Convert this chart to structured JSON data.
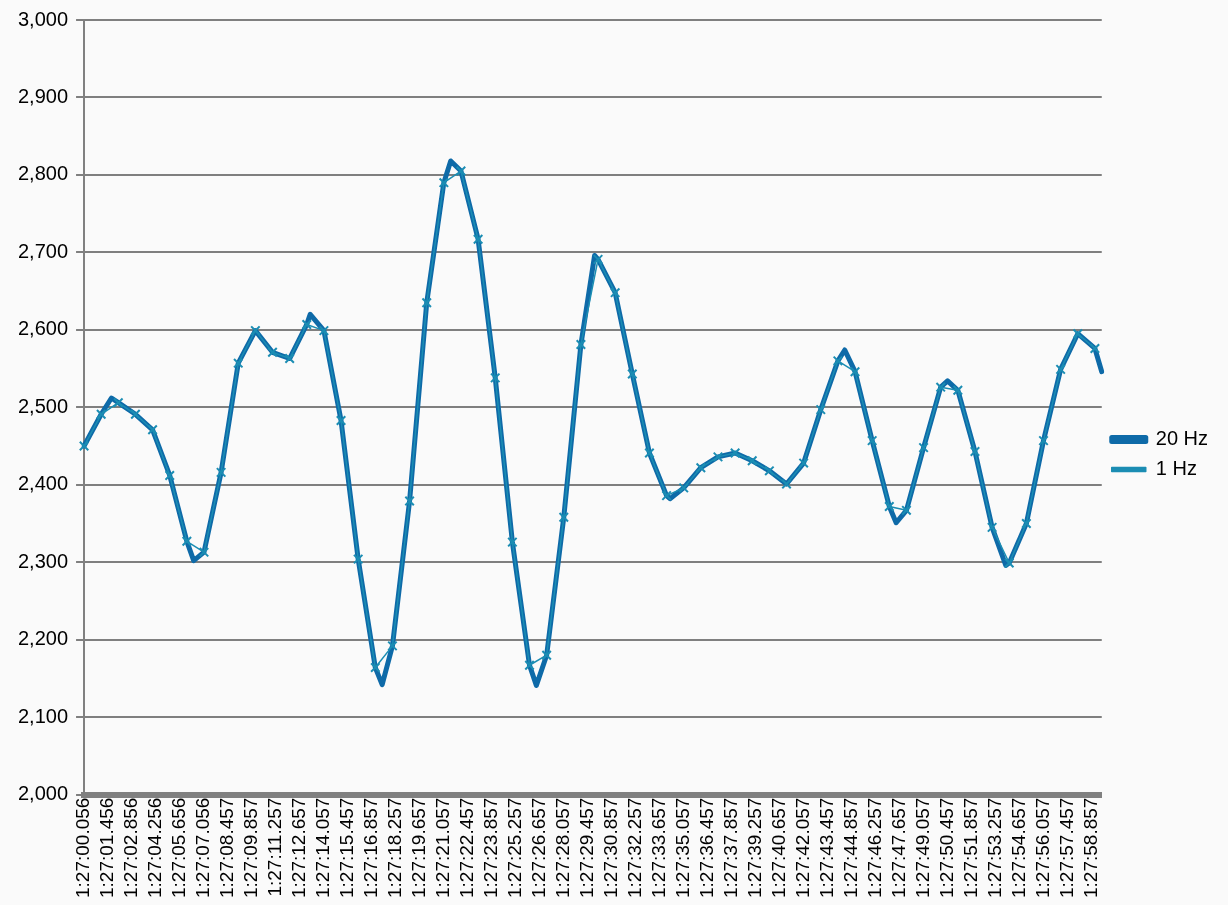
{
  "chart_data": {
    "type": "line",
    "ylim": [
      2000,
      3000
    ],
    "yticks": [
      {
        "value": 2000,
        "label": "2,000"
      },
      {
        "value": 2100,
        "label": "2,100"
      },
      {
        "value": 2200,
        "label": "2,200"
      },
      {
        "value": 2300,
        "label": "2,300"
      },
      {
        "value": 2400,
        "label": "2,400"
      },
      {
        "value": 2500,
        "label": "2,500"
      },
      {
        "value": 2600,
        "label": "2,600"
      },
      {
        "value": 2700,
        "label": "2,700"
      },
      {
        "value": 2800,
        "label": "2,800"
      },
      {
        "value": 2900,
        "label": "2,900"
      },
      {
        "value": 3000,
        "label": "3,000"
      }
    ],
    "categories": [
      "1:27:00.056",
      null,
      null,
      null,
      null,
      null,
      null,
      "1:27:01.456",
      null,
      null,
      null,
      null,
      null,
      null,
      "1:27:02.856",
      null,
      null,
      null,
      null,
      null,
      null,
      "1:27:04.256",
      null,
      null,
      null,
      null,
      null,
      null,
      "1:27:05.656",
      null,
      null,
      null,
      null,
      null,
      null,
      "1:27:07.056",
      null,
      null,
      null,
      null,
      null,
      null,
      "1:27:08.457",
      null,
      null,
      null,
      null,
      null,
      null,
      "1:27:09.857",
      null,
      null,
      null,
      null,
      null,
      null,
      "1:27:11.257",
      null,
      null,
      null,
      null,
      null,
      null,
      "1:27:12.657",
      null,
      null,
      null,
      null,
      null,
      null,
      "1:27:14.057",
      null,
      null,
      null,
      null,
      null,
      null,
      "1:27:15.457",
      null,
      null,
      null,
      null,
      null,
      null,
      "1:27:16.857",
      null,
      null,
      null,
      null,
      null,
      null,
      "1:27:18.257",
      null,
      null,
      null,
      null,
      null,
      null,
      "1:27:19.657",
      null,
      null,
      null,
      null,
      null,
      null,
      "1:27:21.057",
      null,
      null,
      null,
      null,
      null,
      null,
      "1:27:22.457",
      null,
      null,
      null,
      null,
      null,
      null,
      "1:27:23.857",
      null,
      null,
      null,
      null,
      null,
      null,
      "1:27:25.257",
      null,
      null,
      null,
      null,
      null,
      null,
      "1:27:26.657",
      null,
      null,
      null,
      null,
      null,
      null,
      "1:27:28.057",
      null,
      null,
      null,
      null,
      null,
      null,
      "1:27:29.457",
      null,
      null,
      null,
      null,
      null,
      null,
      "1:27:30.857",
      null,
      null,
      null,
      null,
      null,
      null,
      "1:27:32.257",
      null,
      null,
      null,
      null,
      null,
      null,
      "1:27:33.657",
      null,
      null,
      null,
      null,
      null,
      null,
      "1:27:35.057",
      null,
      null,
      null,
      null,
      null,
      null,
      "1:27:36.457",
      null,
      null,
      null,
      null,
      null,
      null,
      "1:27:37.857",
      null,
      null,
      null,
      null,
      null,
      null,
      "1:27:39.257",
      null,
      null,
      null,
      null,
      null,
      null,
      "1:27:40.657",
      null,
      null,
      null,
      null,
      null,
      null,
      "1:27:42.057",
      null,
      null,
      null,
      null,
      null,
      null,
      "1:27:43.457",
      null,
      null,
      null,
      null,
      null,
      null,
      "1:27:44.857",
      null,
      null,
      null,
      null,
      null,
      null,
      "1:27:46.257",
      null,
      null,
      null,
      null,
      null,
      null,
      "1:27:47.657",
      null,
      null,
      null,
      null,
      null,
      null,
      "1:27:49.057",
      null,
      null,
      null,
      null,
      null,
      null,
      "1:27:50.457",
      null,
      null,
      null,
      null,
      null,
      null,
      "1:27:51.857",
      null,
      null,
      null,
      null,
      null,
      null,
      "1:27:53.257",
      null,
      null,
      null,
      null,
      null,
      null,
      "1:27:54.657",
      null,
      null,
      null,
      null,
      null,
      null,
      "1:27:56.057",
      null,
      null,
      null,
      null,
      null,
      null,
      "1:27:57.457",
      null,
      null,
      null,
      null,
      null,
      null,
      "1:27:58.857",
      null,
      null,
      null
    ],
    "grid": "y",
    "legend": "right",
    "series": [
      {
        "name": "20 Hz",
        "color": "#0e6aa8",
        "marker": "none",
        "values": [
          2450,
          null,
          null,
          null,
          null,
          2491,
          null,
          null,
          2512,
          null,
          2506,
          null,
          null,
          null,
          null,
          2491,
          null,
          null,
          null,
          null,
          2471,
          null,
          null,
          null,
          null,
          2412,
          null,
          null,
          null,
          null,
          2327,
          null,
          2302,
          null,
          null,
          2313,
          null,
          null,
          null,
          null,
          2416,
          null,
          null,
          null,
          null,
          2557,
          null,
          null,
          null,
          null,
          2599,
          null,
          null,
          null,
          null,
          2571,
          null,
          null,
          null,
          null,
          2563,
          null,
          null,
          null,
          null,
          2607,
          2620,
          null,
          null,
          null,
          2599,
          null,
          null,
          null,
          null,
          2483,
          null,
          null,
          null,
          null,
          2304,
          null,
          null,
          null,
          null,
          2164,
          null,
          2142,
          null,
          null,
          2192,
          null,
          null,
          null,
          null,
          2379,
          null,
          null,
          null,
          null,
          2635,
          null,
          null,
          null,
          null,
          2790,
          null,
          2818,
          null,
          null,
          2805,
          null,
          null,
          null,
          null,
          2717,
          null,
          null,
          null,
          null,
          2538,
          null,
          null,
          null,
          null,
          2326,
          null,
          null,
          null,
          null,
          2167,
          null,
          2141,
          null,
          null,
          2180,
          null,
          null,
          null,
          null,
          2358,
          null,
          null,
          null,
          null,
          2581,
          null,
          null,
          null,
          2696,
          2691,
          null,
          null,
          null,
          null,
          2648,
          null,
          null,
          null,
          null,
          2543,
          null,
          null,
          null,
          null,
          2441,
          null,
          null,
          null,
          null,
          2386,
          2382,
          null,
          null,
          null,
          2396,
          null,
          null,
          null,
          null,
          2422,
          null,
          null,
          null,
          null,
          2436,
          null,
          null,
          null,
          null,
          2441,
          null,
          null,
          null,
          null,
          2431,
          null,
          null,
          null,
          null,
          2418,
          null,
          null,
          null,
          null,
          2401,
          null,
          null,
          null,
          null,
          2428,
          null,
          null,
          null,
          null,
          2497,
          null,
          null,
          null,
          null,
          2560,
          null,
          2574,
          null,
          null,
          2546,
          null,
          null,
          null,
          null,
          2457,
          null,
          null,
          null,
          null,
          2372,
          null,
          2351,
          null,
          null,
          2367,
          null,
          null,
          null,
          null,
          2448,
          null,
          null,
          null,
          null,
          2526,
          null,
          2534,
          null,
          null,
          2522,
          null,
          null,
          null,
          null,
          2443,
          null,
          null,
          null,
          null,
          2345,
          null,
          null,
          null,
          2296,
          2299,
          null,
          null,
          null,
          null,
          2350,
          null,
          null,
          null,
          null,
          2457,
          null,
          null,
          null,
          null,
          2549,
          null,
          null,
          null,
          null,
          2595,
          null,
          null,
          null,
          null,
          2576,
          null,
          2546
        ]
      },
      {
        "name": "1 Hz",
        "color": "#1b8db3",
        "marker": "cross",
        "values": [
          2450,
          null,
          null,
          null,
          null,
          2491,
          null,
          null,
          null,
          null,
          2506,
          null,
          null,
          null,
          null,
          2491,
          null,
          null,
          null,
          null,
          2471,
          null,
          null,
          null,
          null,
          2412,
          null,
          null,
          null,
          null,
          2327,
          null,
          null,
          null,
          null,
          2313,
          null,
          null,
          null,
          null,
          2416,
          null,
          null,
          null,
          null,
          2557,
          null,
          null,
          null,
          null,
          2599,
          null,
          null,
          null,
          null,
          2571,
          null,
          null,
          null,
          null,
          2563,
          null,
          null,
          null,
          null,
          2607,
          null,
          null,
          null,
          null,
          2599,
          null,
          null,
          null,
          null,
          2483,
          null,
          null,
          null,
          null,
          2304,
          null,
          null,
          null,
          null,
          2164,
          null,
          null,
          null,
          null,
          2192,
          null,
          null,
          null,
          null,
          2379,
          null,
          null,
          null,
          null,
          2635,
          null,
          null,
          null,
          null,
          2790,
          null,
          null,
          null,
          null,
          2805,
          null,
          null,
          null,
          null,
          2717,
          null,
          null,
          null,
          null,
          2538,
          null,
          null,
          null,
          null,
          2326,
          null,
          null,
          null,
          null,
          2167,
          null,
          null,
          null,
          null,
          2180,
          null,
          null,
          null,
          null,
          2358,
          null,
          null,
          null,
          null,
          2581,
          null,
          null,
          null,
          null,
          2691,
          null,
          null,
          null,
          null,
          2648,
          null,
          null,
          null,
          null,
          2543,
          null,
          null,
          null,
          null,
          2441,
          null,
          null,
          null,
          null,
          2386,
          null,
          null,
          null,
          null,
          2396,
          null,
          null,
          null,
          null,
          2422,
          null,
          null,
          null,
          null,
          2436,
          null,
          null,
          null,
          null,
          2441,
          null,
          null,
          null,
          null,
          2431,
          null,
          null,
          null,
          null,
          2418,
          null,
          null,
          null,
          null,
          2401,
          null,
          null,
          null,
          null,
          2428,
          null,
          null,
          null,
          null,
          2497,
          null,
          null,
          null,
          null,
          2560,
          null,
          null,
          null,
          null,
          2546,
          null,
          null,
          null,
          null,
          2457,
          null,
          null,
          null,
          null,
          2372,
          null,
          null,
          null,
          null,
          2367,
          null,
          null,
          null,
          null,
          2448,
          null,
          null,
          null,
          null,
          2526,
          null,
          null,
          null,
          null,
          2522,
          null,
          null,
          null,
          null,
          2443,
          null,
          null,
          null,
          null,
          2345,
          null,
          null,
          null,
          null,
          2299,
          null,
          null,
          null,
          null,
          2350,
          null,
          null,
          null,
          null,
          2457,
          null,
          null,
          null,
          null,
          2549,
          null,
          null,
          null,
          null,
          2595,
          null,
          null,
          null,
          null,
          2576,
          null,
          null
        ]
      }
    ]
  }
}
